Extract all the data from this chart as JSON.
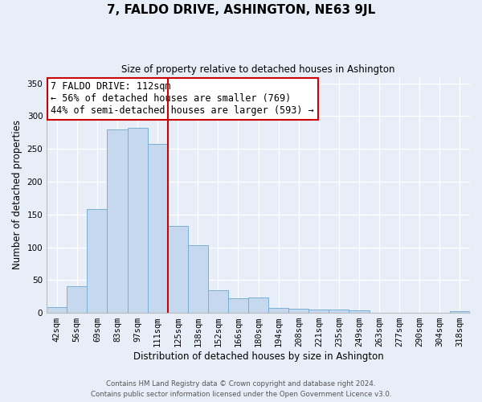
{
  "title": "7, FALDO DRIVE, ASHINGTON, NE63 9JL",
  "subtitle": "Size of property relative to detached houses in Ashington",
  "xlabel": "Distribution of detached houses by size in Ashington",
  "ylabel": "Number of detached properties",
  "bar_labels": [
    "42sqm",
    "56sqm",
    "69sqm",
    "83sqm",
    "97sqm",
    "111sqm",
    "125sqm",
    "138sqm",
    "152sqm",
    "166sqm",
    "180sqm",
    "194sqm",
    "208sqm",
    "221sqm",
    "235sqm",
    "249sqm",
    "263sqm",
    "277sqm",
    "290sqm",
    "304sqm",
    "318sqm"
  ],
  "bar_values": [
    9,
    41,
    158,
    280,
    282,
    258,
    133,
    103,
    35,
    22,
    23,
    7,
    6,
    5,
    5,
    4,
    0,
    0,
    0,
    0,
    2
  ],
  "bar_color": "#c5d8ee",
  "bar_edge_color": "#7aafd4",
  "highlight_line_color": "#cc0000",
  "annotation_text": "7 FALDO DRIVE: 112sqm\n← 56% of detached houses are smaller (769)\n44% of semi-detached houses are larger (593) →",
  "annotation_box_color": "#ffffff",
  "annotation_box_edge_color": "#cc0000",
  "ylim": [
    0,
    360
  ],
  "yticks": [
    0,
    50,
    100,
    150,
    200,
    250,
    300,
    350
  ],
  "footer1": "Contains HM Land Registry data © Crown copyright and database right 2024.",
  "footer2": "Contains public sector information licensed under the Open Government Licence v3.0.",
  "background_color": "#e8eef8",
  "plot_background_color": "#e8eef8",
  "grid_color": "#ffffff"
}
